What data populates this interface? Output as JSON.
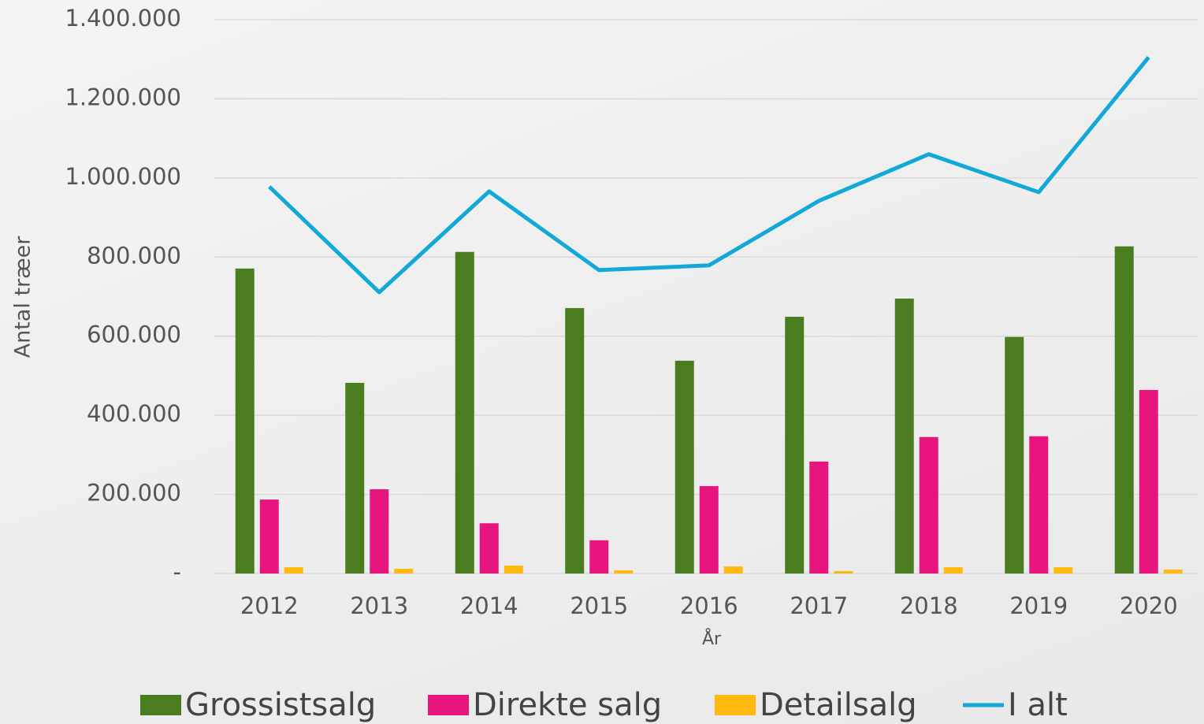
{
  "chart_data": {
    "type": "bar",
    "x_label": "År",
    "y_label": "Antal træer",
    "categories": [
      "2012",
      "2013",
      "2014",
      "2015",
      "2016",
      "2017",
      "2018",
      "2019",
      "2020"
    ],
    "series": [
      {
        "name": "Grossistsalg",
        "color": "#4a7d1f",
        "type": "bar",
        "values": [
          771000,
          482000,
          813000,
          671000,
          538000,
          649000,
          695000,
          598000,
          827000
        ]
      },
      {
        "name": "Direkte salg",
        "color": "#e8157f",
        "type": "bar",
        "values": [
          187000,
          213000,
          127000,
          84000,
          221000,
          283000,
          345000,
          347000,
          464000
        ]
      },
      {
        "name": "Detailsalg",
        "color": "#ffb90f",
        "type": "bar",
        "values": [
          16000,
          12000,
          20000,
          8000,
          18000,
          6000,
          16000,
          16000,
          10000
        ]
      },
      {
        "name": "I alt",
        "color": "#12a9d8",
        "type": "line",
        "values": [
          978000,
          711000,
          966000,
          767000,
          779000,
          942000,
          1060000,
          964000,
          1305000
        ]
      }
    ],
    "ylim": [
      0,
      1400000
    ],
    "yticks": [
      {
        "value": 0,
        "label": "-"
      },
      {
        "value": 200000,
        "label": "200.000"
      },
      {
        "value": 400000,
        "label": "400.000"
      },
      {
        "value": 600000,
        "label": "600.000"
      },
      {
        "value": 800000,
        "label": "800.000"
      },
      {
        "value": 1000000,
        "label": "1.000.000"
      },
      {
        "value": 1200000,
        "label": "1.200.000"
      },
      {
        "value": 1400000,
        "label": "1.400.000"
      }
    ],
    "grid": true,
    "legend": "bottom"
  }
}
